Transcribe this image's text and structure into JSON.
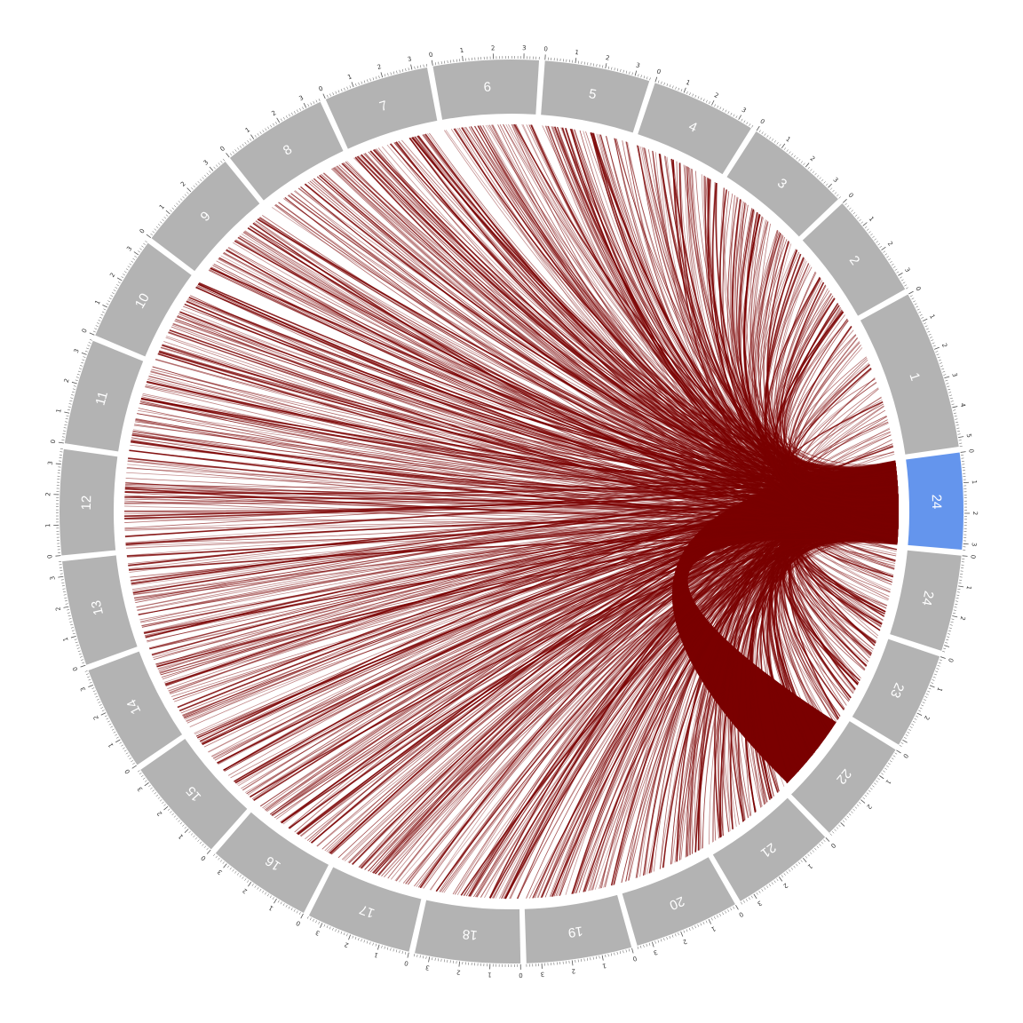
{
  "chart_data": {
    "type": "chord",
    "segments": [
      {
        "label": "24",
        "length": 3.2,
        "highlight": true,
        "tick_labels": [
          "0",
          "1",
          "2",
          "3"
        ]
      },
      {
        "label": "24",
        "length": 3.2,
        "highlight": false,
        "tick_labels": [
          "0",
          "1",
          "2"
        ]
      },
      {
        "label": "23",
        "length": 3.2,
        "highlight": false,
        "tick_labels": [
          "0",
          "1",
          "2"
        ]
      },
      {
        "label": "22",
        "length": 3.5,
        "highlight": false,
        "tick_labels": [
          "0",
          "1",
          "2"
        ]
      },
      {
        "label": "21",
        "length": 3.5,
        "highlight": false,
        "tick_labels": [
          "0",
          "1",
          "2",
          "3"
        ]
      },
      {
        "label": "20",
        "length": 3.5,
        "highlight": false,
        "tick_labels": [
          "0",
          "1",
          "2",
          "3"
        ]
      },
      {
        "label": "19",
        "length": 3.5,
        "highlight": false,
        "tick_labels": [
          "0",
          "1",
          "2",
          "3"
        ]
      },
      {
        "label": "18",
        "length": 3.5,
        "highlight": false,
        "tick_labels": [
          "0",
          "1",
          "2",
          "3"
        ]
      },
      {
        "label": "17",
        "length": 3.5,
        "highlight": false,
        "tick_labels": [
          "0",
          "1",
          "2",
          "3"
        ]
      },
      {
        "label": "16",
        "length": 3.5,
        "highlight": false,
        "tick_labels": [
          "0",
          "1",
          "2",
          "3"
        ]
      },
      {
        "label": "15",
        "length": 3.5,
        "highlight": false,
        "tick_labels": [
          "0",
          "1",
          "2",
          "3"
        ]
      },
      {
        "label": "14",
        "length": 3.5,
        "highlight": false,
        "tick_labels": [
          "0",
          "1",
          "2",
          "3"
        ]
      },
      {
        "label": "13",
        "length": 3.5,
        "highlight": false,
        "tick_labels": [
          "0",
          "1",
          "2",
          "3"
        ]
      },
      {
        "label": "12",
        "length": 3.5,
        "highlight": false,
        "tick_labels": [
          "0",
          "1",
          "2",
          "3"
        ]
      },
      {
        "label": "11",
        "length": 3.5,
        "highlight": false,
        "tick_labels": [
          "0",
          "1",
          "2",
          "3"
        ]
      },
      {
        "label": "10",
        "length": 3.5,
        "highlight": false,
        "tick_labels": [
          "0",
          "1",
          "2",
          "3"
        ]
      },
      {
        "label": "9",
        "length": 3.5,
        "highlight": false,
        "tick_labels": [
          "0",
          "1",
          "2",
          "3"
        ]
      },
      {
        "label": "8",
        "length": 3.5,
        "highlight": false,
        "tick_labels": [
          "0",
          "1",
          "2",
          "3"
        ]
      },
      {
        "label": "7",
        "length": 3.5,
        "highlight": false,
        "tick_labels": [
          "0",
          "1",
          "2",
          "3"
        ]
      },
      {
        "label": "6",
        "length": 3.5,
        "highlight": false,
        "tick_labels": [
          "0",
          "1",
          "2",
          "3"
        ]
      },
      {
        "label": "5",
        "length": 3.5,
        "highlight": false,
        "tick_labels": [
          "0",
          "1",
          "2",
          "3"
        ]
      },
      {
        "label": "4",
        "length": 3.5,
        "highlight": false,
        "tick_labels": [
          "0",
          "1",
          "2",
          "3"
        ]
      },
      {
        "label": "3",
        "length": 3.5,
        "highlight": false,
        "tick_labels": [
          "0",
          "1",
          "2",
          "3"
        ]
      },
      {
        "label": "2",
        "length": 3.5,
        "highlight": false,
        "tick_labels": [
          "0",
          "1",
          "2",
          "3"
        ]
      },
      {
        "label": "1",
        "length": 5.3,
        "highlight": false,
        "tick_labels": [
          "0",
          "1",
          "2",
          "3",
          "4",
          "5"
        ]
      }
    ],
    "links": {
      "source_segment": 0,
      "heavy_bundles": [
        {
          "target_segment": 3,
          "target_position": [
            0.3,
            3.3
          ]
        }
      ],
      "fan_out_targets": "all other segments",
      "density_note": "many hundreds of thin links from segment 24 to every position on the ring"
    },
    "colors": {
      "segment_fill": "#b3b3b3",
      "highlight_fill": "#6495ed",
      "link_color": "#7a0000",
      "segment_label_color": "#ffffff"
    }
  }
}
